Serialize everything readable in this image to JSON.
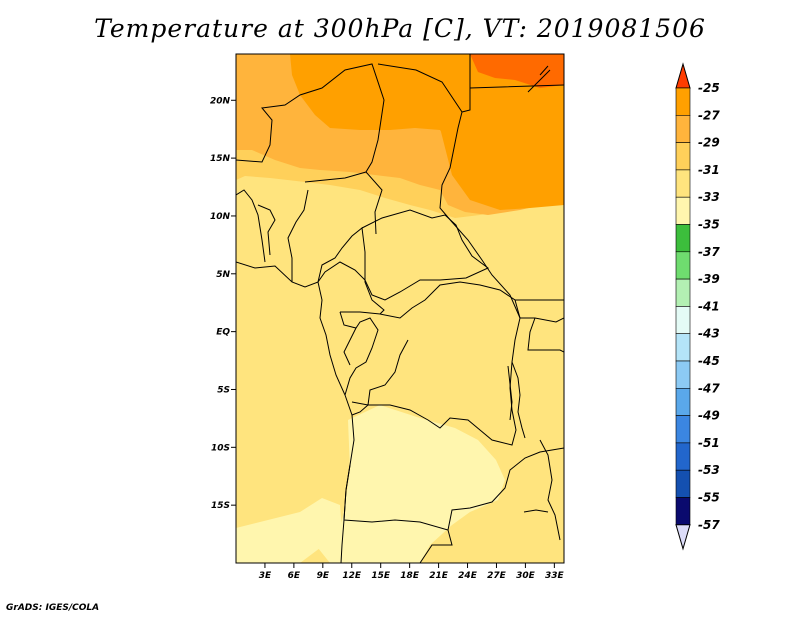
{
  "title": "Temperature at 300hPa [C], VT: 2019081506",
  "credit": "GrADS: IGES/COLA",
  "map": {
    "lat_range": [
      -20,
      24
    ],
    "lon_range": [
      0,
      34
    ],
    "lat_ticks": [
      {
        "value": 20,
        "label": "20N"
      },
      {
        "value": 15,
        "label": "15N"
      },
      {
        "value": 10,
        "label": "10N"
      },
      {
        "value": 5,
        "label": "5N"
      },
      {
        "value": 0,
        "label": "EQ"
      },
      {
        "value": -5,
        "label": "5S"
      },
      {
        "value": -10,
        "label": "10S"
      },
      {
        "value": -15,
        "label": "15S"
      }
    ],
    "lon_ticks": [
      {
        "value": 3,
        "label": "3E"
      },
      {
        "value": 6,
        "label": "6E"
      },
      {
        "value": 9,
        "label": "9E"
      },
      {
        "value": 12,
        "label": "12E"
      },
      {
        "value": 15,
        "label": "15E"
      },
      {
        "value": 18,
        "label": "18E"
      },
      {
        "value": 21,
        "label": "21E"
      },
      {
        "value": 24,
        "label": "24E"
      },
      {
        "value": 27,
        "label": "27E"
      },
      {
        "value": 30,
        "label": "30E"
      },
      {
        "value": 33,
        "label": "33E"
      }
    ]
  },
  "colorbar": {
    "bins": [
      {
        "label": "-25",
        "color": "#ff6a00"
      },
      {
        "label": "-27",
        "color": "#ffa000"
      },
      {
        "label": "-29",
        "color": "#ffb43c"
      },
      {
        "label": "-31",
        "color": "#ffd05a"
      },
      {
        "label": "-33",
        "color": "#ffe47e"
      },
      {
        "label": "-35",
        "color": "#fff6ae"
      },
      {
        "label": "-37",
        "color": "#3cbe3c"
      },
      {
        "label": "-39",
        "color": "#6fdc6f"
      },
      {
        "label": "-41",
        "color": "#b3f0b3"
      },
      {
        "label": "-43",
        "color": "#e4fbf6"
      },
      {
        "label": "-45",
        "color": "#b4e4f8"
      },
      {
        "label": "-47",
        "color": "#8ccaf4"
      },
      {
        "label": "-49",
        "color": "#5aa8ea"
      },
      {
        "label": "-51",
        "color": "#3b86e1"
      },
      {
        "label": "-53",
        "color": "#2266cc"
      },
      {
        "label": "-55",
        "color": "#1450b0"
      },
      {
        "label": "-57",
        "color": "#0a0a6e"
      }
    ],
    "top_arrow_color": "#ff3c00",
    "bottom_arrow_color": "#dcdcf8"
  }
}
